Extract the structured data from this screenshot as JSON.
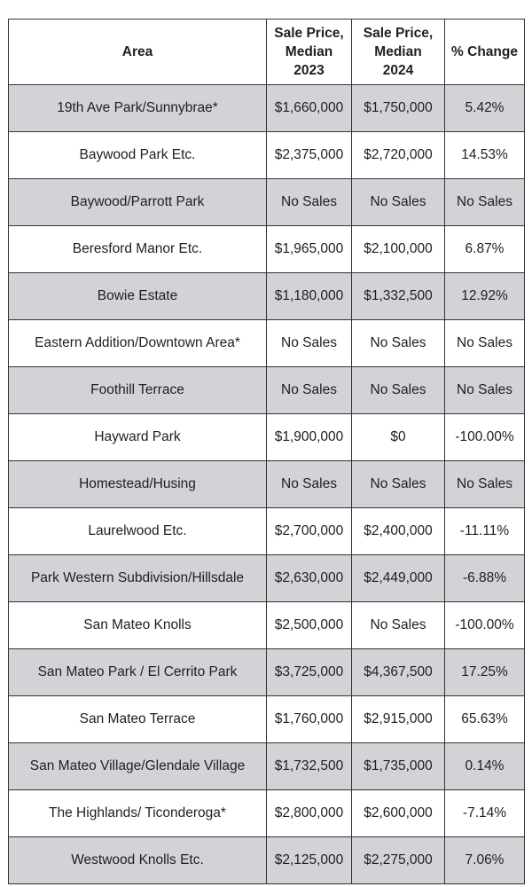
{
  "table": {
    "headers": {
      "area": "Area",
      "price_2023_line1": "Sale Price,",
      "price_2023_line2": "Median",
      "price_2023_line3": "2023",
      "price_2024_line1": "Sale Price,",
      "price_2024_line2": "Median",
      "price_2024_line3": "2024",
      "change": "% Change"
    },
    "rows": [
      {
        "area": "19th Ave Park/Sunnybrae*",
        "price_2023": "$1,660,000",
        "price_2024": "$1,750,000",
        "change": "5.42%"
      },
      {
        "area": "Baywood Park Etc.",
        "price_2023": "$2,375,000",
        "price_2024": "$2,720,000",
        "change": "14.53%"
      },
      {
        "area": "Baywood/Parrott Park",
        "price_2023": "No Sales",
        "price_2024": "No Sales",
        "change": "No Sales"
      },
      {
        "area": "Beresford Manor Etc.",
        "price_2023": "$1,965,000",
        "price_2024": "$2,100,000",
        "change": "6.87%"
      },
      {
        "area": "Bowie Estate",
        "price_2023": "$1,180,000",
        "price_2024": "$1,332,500",
        "change": "12.92%"
      },
      {
        "area": "Eastern Addition/Downtown Area*",
        "price_2023": "No Sales",
        "price_2024": "No Sales",
        "change": "No Sales"
      },
      {
        "area": "Foothill Terrace",
        "price_2023": "No Sales",
        "price_2024": "No Sales",
        "change": "No Sales"
      },
      {
        "area": "Hayward Park",
        "price_2023": "$1,900,000",
        "price_2024": "$0",
        "change": "-100.00%"
      },
      {
        "area": "Homestead/Husing",
        "price_2023": "No Sales",
        "price_2024": "No Sales",
        "change": "No Sales"
      },
      {
        "area": "Laurelwood Etc.",
        "price_2023": "$2,700,000",
        "price_2024": "$2,400,000",
        "change": "-11.11%"
      },
      {
        "area": "Park Western Subdivision/Hillsdale",
        "price_2023": "$2,630,000",
        "price_2024": "$2,449,000",
        "change": "-6.88%"
      },
      {
        "area": "San Mateo Knolls",
        "price_2023": "$2,500,000",
        "price_2024": "No Sales",
        "change": "-100.00%"
      },
      {
        "area": "San Mateo Park / El Cerrito Park",
        "price_2023": "$3,725,000",
        "price_2024": "$4,367,500",
        "change": "17.25%"
      },
      {
        "area": "San Mateo Terrace",
        "price_2023": "$1,760,000",
        "price_2024": "$2,915,000",
        "change": "65.63%"
      },
      {
        "area": "San Mateo Village/Glendale Village",
        "price_2023": "$1,732,500",
        "price_2024": "$1,735,000",
        "change": "0.14%"
      },
      {
        "area": "The Highlands/ Ticonderoga*",
        "price_2023": "$2,800,000",
        "price_2024": "$2,600,000",
        "change": "-7.14%"
      },
      {
        "area": "Westwood Knolls Etc.",
        "price_2023": "$2,125,000",
        "price_2024": "$2,275,000",
        "change": "7.06%"
      }
    ],
    "colors": {
      "shaded_row": "#d1d3d6",
      "plain_row": "#ffffff",
      "border": "#333333"
    }
  }
}
